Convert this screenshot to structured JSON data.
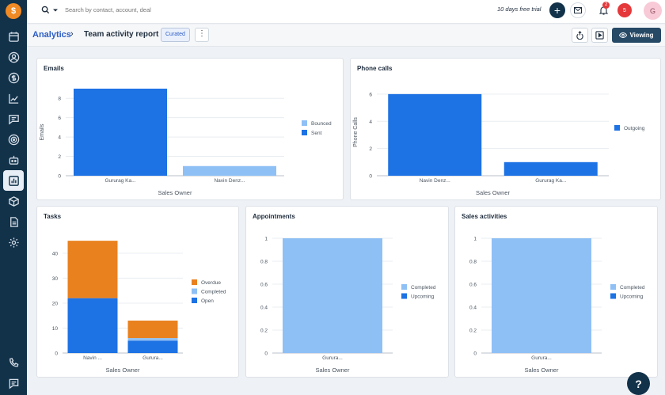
{
  "app": {
    "logo_text": "$",
    "search_placeholder": "Search by contact, account, deal",
    "trial_text": "10 days free trial",
    "notification_count": "2",
    "alert_count": "5",
    "avatar_initial": "G"
  },
  "nav_icons": [
    "calendar-icon",
    "contacts-icon",
    "deals-icon",
    "analytics-trend-icon",
    "chat-icon",
    "target-icon",
    "bot-icon",
    "reports-icon",
    "product-icon",
    "document-icon",
    "settings-icon",
    "phone-icon",
    "feedback-icon"
  ],
  "header": {
    "breadcrumb_root": "Analytics",
    "separator": "›",
    "title": "Team activity report",
    "curated_label": "Curated",
    "more_label": "⋮",
    "viewing_label": "Viewing"
  },
  "colors": {
    "sent": "#1d72e4",
    "bounced": "#8fc0f5",
    "overdue": "#e9811f",
    "completed": "#8fc0f5",
    "open": "#1d72e4",
    "upcoming": "#1d72e4"
  },
  "chart_data": [
    {
      "id": "emails",
      "type": "bar",
      "title": "Emails",
      "xlabel": "Sales Owner",
      "ylabel": "Emails",
      "categories": [
        "Gururag Ka...",
        "Navin Denz..."
      ],
      "stacked": true,
      "series": [
        {
          "name": "Bounced",
          "color": "#8fc0f5",
          "values": [
            0,
            0
          ]
        },
        {
          "name": "Sent",
          "color": "#1d72e4",
          "values": [
            9,
            0
          ]
        }
      ],
      "extra_bars": [
        {
          "category": 1,
          "value": 1,
          "color": "#8fc0f5"
        }
      ],
      "ylim": [
        0,
        9
      ],
      "yticks": [
        0,
        2,
        4,
        6,
        8
      ],
      "legend": [
        {
          "name": "Bounced",
          "color": "#8fc0f5"
        },
        {
          "name": "Sent",
          "color": "#1d72e4"
        }
      ],
      "legend_position": "right"
    },
    {
      "id": "phone_calls",
      "type": "bar",
      "title": "Phone calls",
      "xlabel": "Sales Owner",
      "ylabel": "Phone Calls",
      "categories": [
        "Navin Denz...",
        "Gururag Ka..."
      ],
      "stacked": true,
      "series": [
        {
          "name": "Outgoing",
          "color": "#1d72e4",
          "values": [
            6,
            1
          ]
        }
      ],
      "ylim": [
        0,
        6.4
      ],
      "yticks": [
        0,
        2,
        4,
        6
      ],
      "legend": [
        {
          "name": "Outgoing",
          "color": "#1d72e4"
        }
      ],
      "legend_position": "right"
    },
    {
      "id": "tasks",
      "type": "bar",
      "title": "Tasks",
      "xlabel": "Sales Owner",
      "ylabel": "",
      "categories": [
        "Navin ...",
        "Gurura..."
      ],
      "stacked": true,
      "series": [
        {
          "name": "Open",
          "color": "#1d72e4",
          "values": [
            22,
            5
          ]
        },
        {
          "name": "Completed",
          "color": "#8fc0f5",
          "values": [
            0,
            1
          ]
        },
        {
          "name": "Overdue",
          "color": "#e9811f",
          "values": [
            23,
            7
          ]
        }
      ],
      "ylim": [
        0,
        46
      ],
      "yticks": [
        0,
        10,
        20,
        30,
        40
      ],
      "legend": [
        {
          "name": "Overdue",
          "color": "#e9811f"
        },
        {
          "name": "Completed",
          "color": "#8fc0f5"
        },
        {
          "name": "Open",
          "color": "#1d72e4"
        }
      ],
      "legend_position": "right"
    },
    {
      "id": "appointments",
      "type": "bar",
      "title": "Appointments",
      "xlabel": "Sales Owner",
      "ylabel": "",
      "categories": [
        "Gurura..."
      ],
      "stacked": true,
      "series": [
        {
          "name": "Completed",
          "color": "#8fc0f5",
          "values": [
            1
          ]
        },
        {
          "name": "Upcoming",
          "color": "#1d72e4",
          "values": [
            0
          ]
        }
      ],
      "ylim": [
        0,
        1
      ],
      "yticks": [
        0,
        0.2,
        0.4,
        0.6,
        0.8,
        1
      ],
      "legend": [
        {
          "name": "Completed",
          "color": "#8fc0f5"
        },
        {
          "name": "Upcoming",
          "color": "#1d72e4"
        }
      ],
      "legend_position": "right"
    },
    {
      "id": "sales_activities",
      "type": "bar",
      "title": "Sales activities",
      "xlabel": "Sales Owner",
      "ylabel": "",
      "categories": [
        "Gurura..."
      ],
      "stacked": true,
      "series": [
        {
          "name": "Completed",
          "color": "#8fc0f5",
          "values": [
            1
          ]
        },
        {
          "name": "Upcoming",
          "color": "#1d72e4",
          "values": [
            0
          ]
        }
      ],
      "ylim": [
        0,
        1
      ],
      "yticks": [
        0,
        0.2,
        0.4,
        0.6,
        0.8,
        1
      ],
      "legend": [
        {
          "name": "Completed",
          "color": "#8fc0f5"
        },
        {
          "name": "Upcoming",
          "color": "#1d72e4"
        }
      ],
      "legend_position": "right"
    }
  ],
  "help_label": "?"
}
